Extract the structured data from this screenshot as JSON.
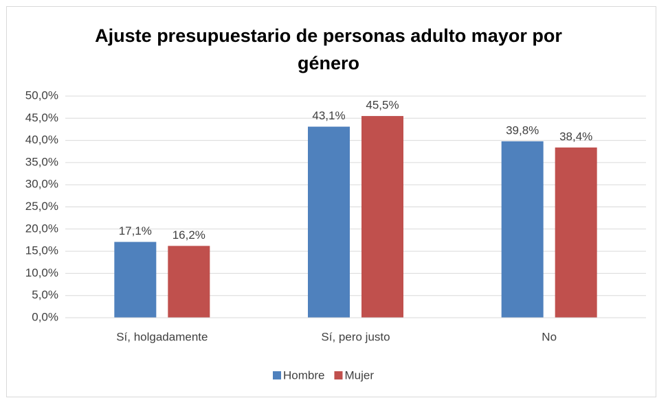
{
  "chart_data": {
    "type": "bar",
    "title": "Ajuste presupuestario de personas adulto mayor por género",
    "categories": [
      "Sí, holgadamente",
      "Sí, pero justo",
      "No"
    ],
    "series": [
      {
        "name": "Hombre",
        "color": "#4f81bd",
        "values": [
          17.1,
          43.1,
          39.8
        ],
        "value_labels": [
          "17,1%",
          "43,1%",
          "39,8%"
        ]
      },
      {
        "name": "Mujer",
        "color": "#c0504d",
        "values": [
          16.2,
          45.5,
          38.4
        ],
        "value_labels": [
          "16,2%",
          "45,5%",
          "38,4%"
        ]
      }
    ],
    "ylim": [
      0,
      50
    ],
    "yticks": [
      {
        "value": 0,
        "label": "0,0%"
      },
      {
        "value": 5,
        "label": "5,0%"
      },
      {
        "value": 10,
        "label": "10,0%"
      },
      {
        "value": 15,
        "label": "15,0%"
      },
      {
        "value": 20,
        "label": "20,0%"
      },
      {
        "value": 25,
        "label": "25,0%"
      },
      {
        "value": 30,
        "label": "30,0%"
      },
      {
        "value": 35,
        "label": "35,0%"
      },
      {
        "value": 40,
        "label": "40,0%"
      },
      {
        "value": 45,
        "label": "45,0%"
      },
      {
        "value": 50,
        "label": "50,0%"
      }
    ],
    "grid": true,
    "legend": "bottom"
  }
}
